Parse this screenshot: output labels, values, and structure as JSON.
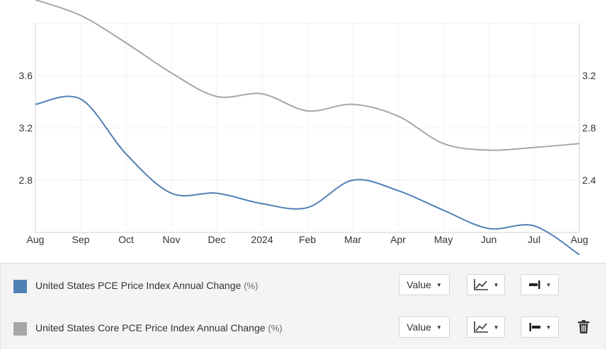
{
  "chart_data": {
    "type": "line",
    "x": [
      "Aug",
      "Sep",
      "Oct",
      "Nov",
      "Dec",
      "2024",
      "Feb",
      "Mar",
      "Apr",
      "May",
      "Jun",
      "Jul",
      "Aug"
    ],
    "series": [
      {
        "name": "United States PCE Price Index Annual Change",
        "axis": "left",
        "color": "#4f81b5",
        "values": [
          3.38,
          3.42,
          3.0,
          2.7,
          2.7,
          2.62,
          2.59,
          2.8,
          2.72,
          2.57,
          2.43,
          2.45,
          2.23
        ]
      },
      {
        "name": "United States Core PCE Price Index Annual Change",
        "axis": "right",
        "color": "#a6a6a6",
        "values": [
          3.78,
          3.66,
          3.45,
          3.22,
          3.04,
          3.06,
          2.93,
          2.98,
          2.89,
          2.68,
          2.63,
          2.65,
          2.68
        ]
      }
    ],
    "y_left": {
      "ticks": [
        "3.6",
        "3.2",
        "2.8"
      ],
      "ylim": [
        2.4,
        4.0
      ]
    },
    "y_right": {
      "ticks": [
        "3.2",
        "2.8",
        "2.4"
      ],
      "ylim": [
        2.0,
        3.6
      ]
    },
    "grid": true,
    "legend": "bottom"
  },
  "legend": {
    "rows": [
      {
        "label": "United States PCE Price Index Annual Change",
        "unit": "(%)",
        "color": "#4f81b5"
      },
      {
        "label": "United States Core PCE Price Index Annual Change",
        "unit": "(%)",
        "color": "#a6a6a6"
      }
    ],
    "value_button": "Value"
  },
  "icons": {
    "chart_type": "line-chart-icon",
    "axis_side": "axis-position-icon",
    "delete": "trash-icon"
  }
}
